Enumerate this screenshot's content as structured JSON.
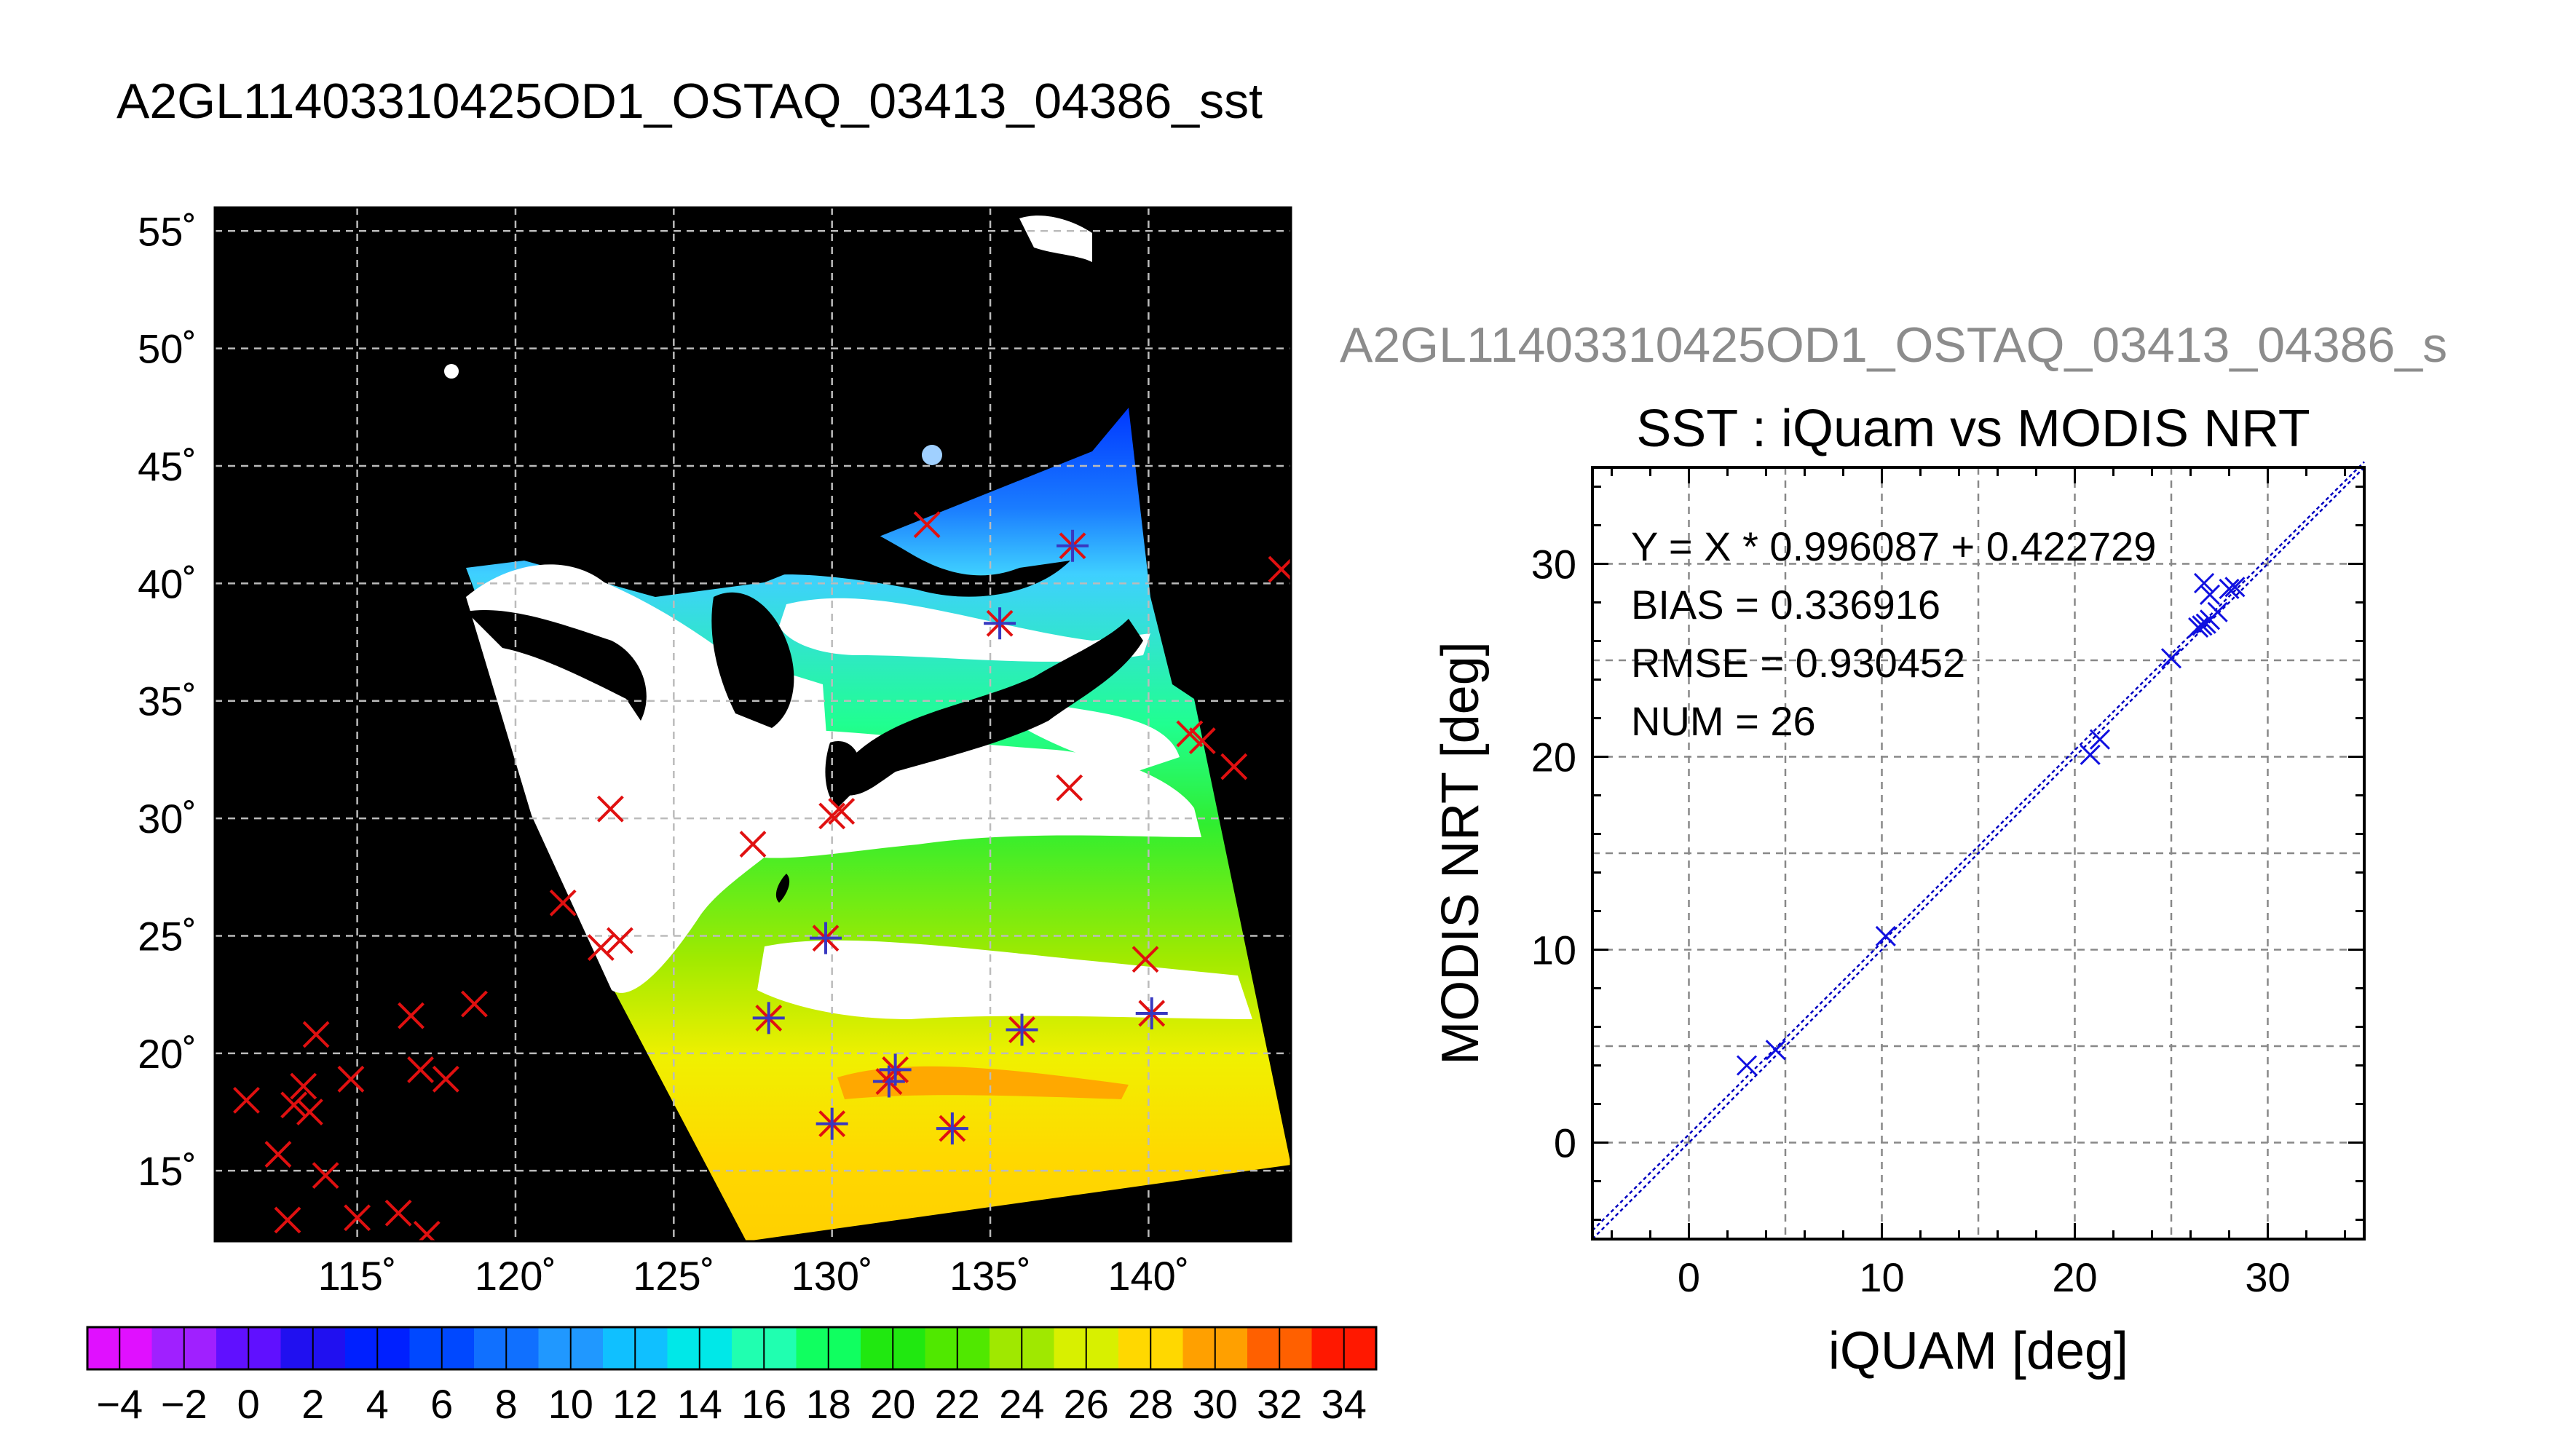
{
  "titles": {
    "main": "A2GL11403310425OD1_OSTAQ_03413_04386_sst",
    "scatter_file": "A2GL11403310425OD1_OSTAQ_03413_04386_s",
    "scatter": "SST : iQuam vs MODIS NRT"
  },
  "stats": {
    "line1": "Y = X * 0.996087 + 0.422729",
    "line2": "BIAS = 0.336916",
    "line3": "RMSE = 0.930452",
    "line4": "NUM = 26"
  },
  "colors": {
    "land": "#000000",
    "cloud": "#ffffff",
    "match_marker": "#e01010",
    "overlay_marker": "#3838c0",
    "scatter_marker": "#1010e0"
  },
  "chart_data": [
    {
      "type": "heatmap",
      "title": "A2GL11403310425OD1_OSTAQ_03413_04386_sst",
      "lon_ticks": [
        "115˚",
        "120˚",
        "125˚",
        "130˚",
        "135˚",
        "140˚"
      ],
      "lat_ticks": [
        "15˚",
        "20˚",
        "25˚",
        "30˚",
        "35˚",
        "40˚",
        "45˚",
        "50˚",
        "55˚"
      ],
      "lon_range": [
        110.5,
        144.5
      ],
      "lat_range": [
        12,
        56
      ],
      "grid": true,
      "colorbar": {
        "ticks": [
          "−4",
          "−2",
          "0",
          "2",
          "4",
          "6",
          "8",
          "10",
          "12",
          "14",
          "16",
          "18",
          "20",
          "22",
          "24",
          "26",
          "28",
          "30",
          "32",
          "34"
        ],
        "range": [
          -5,
          35
        ],
        "colors": [
          "#e010ff",
          "#a020ff",
          "#6010ff",
          "#2010f0",
          "#0020ff",
          "#0048ff",
          "#1070ff",
          "#2098ff",
          "#10c0ff",
          "#00e8e8",
          "#20ffb0",
          "#10ff60",
          "#20e810",
          "#50e800",
          "#a0e800",
          "#d8f000",
          "#ffd800",
          "#ffa000",
          "#ff6000",
          "#ff1800"
        ]
      },
      "iquam_points": [
        {
          "lon": 111.5,
          "lat": 18
        },
        {
          "lon": 112.5,
          "lat": 15.7
        },
        {
          "lon": 112.8,
          "lat": 12.9
        },
        {
          "lon": 113.0,
          "lat": 17.8
        },
        {
          "lon": 113.3,
          "lat": 18.6
        },
        {
          "lon": 113.5,
          "lat": 17.5
        },
        {
          "lon": 113.7,
          "lat": 20.8
        },
        {
          "lon": 114.0,
          "lat": 14.8
        },
        {
          "lon": 114.8,
          "lat": 18.9
        },
        {
          "lon": 115.0,
          "lat": 13.0
        },
        {
          "lon": 116.3,
          "lat": 13.2
        },
        {
          "lon": 116.7,
          "lat": 21.6
        },
        {
          "lon": 117.0,
          "lat": 19.3
        },
        {
          "lon": 117.2,
          "lat": 12.3
        },
        {
          "lon": 117.8,
          "lat": 18.9
        },
        {
          "lon": 118.7,
          "lat": 22.1
        },
        {
          "lon": 121.5,
          "lat": 26.4
        },
        {
          "lon": 122.7,
          "lat": 24.5
        },
        {
          "lon": 123.0,
          "lat": 30.4
        },
        {
          "lon": 123.3,
          "lat": 24.8
        },
        {
          "lon": 127.5,
          "lat": 28.9
        },
        {
          "lon": 130.0,
          "lat": 30.1
        },
        {
          "lon": 130.3,
          "lat": 30.3
        },
        {
          "lon": 133.0,
          "lat": 42.5
        },
        {
          "lon": 137.5,
          "lat": 31.3
        },
        {
          "lon": 139.9,
          "lat": 24.0
        },
        {
          "lon": 141.3,
          "lat": 33.6
        },
        {
          "lon": 141.7,
          "lat": 33.3
        },
        {
          "lon": 142.7,
          "lat": 32.2
        },
        {
          "lon": 144.2,
          "lat": 40.6
        }
      ],
      "matched_points": [
        {
          "lon": 128.0,
          "lat": 21.5
        },
        {
          "lon": 129.8,
          "lat": 24.9
        },
        {
          "lon": 130.0,
          "lat": 17.0
        },
        {
          "lon": 131.8,
          "lat": 18.8
        },
        {
          "lon": 132.0,
          "lat": 19.3
        },
        {
          "lon": 133.8,
          "lat": 16.8
        },
        {
          "lon": 135.3,
          "lat": 38.3
        },
        {
          "lon": 136.0,
          "lat": 21.0
        },
        {
          "lon": 137.6,
          "lat": 41.6
        },
        {
          "lon": 140.1,
          "lat": 21.7
        }
      ]
    },
    {
      "type": "scatter",
      "title": "SST : iQuam vs MODIS NRT",
      "xlabel": "iQUAM [deg]",
      "ylabel": "MODIS NRT [deg]",
      "xlim": [
        -5,
        35
      ],
      "ylim": [
        -5,
        35
      ],
      "xticks": [
        "0",
        "10",
        "20",
        "30"
      ],
      "yticks": [
        "0",
        "10",
        "20",
        "30"
      ],
      "grid": true,
      "fit": {
        "slope": 0.996087,
        "intercept": 0.422729
      },
      "points": [
        {
          "x": 3.0,
          "y": 4.0
        },
        {
          "x": 4.5,
          "y": 4.8
        },
        {
          "x": 10.2,
          "y": 10.7
        },
        {
          "x": 20.8,
          "y": 20.1
        },
        {
          "x": 21.3,
          "y": 20.9
        },
        {
          "x": 25.0,
          "y": 25.1
        },
        {
          "x": 26.4,
          "y": 26.7
        },
        {
          "x": 26.6,
          "y": 26.8
        },
        {
          "x": 26.8,
          "y": 26.9
        },
        {
          "x": 27.0,
          "y": 27.1
        },
        {
          "x": 26.7,
          "y": 29.0
        },
        {
          "x": 27.0,
          "y": 28.4
        },
        {
          "x": 27.4,
          "y": 27.5
        },
        {
          "x": 28.0,
          "y": 28.7
        },
        {
          "x": 28.3,
          "y": 28.8
        }
      ]
    }
  ]
}
